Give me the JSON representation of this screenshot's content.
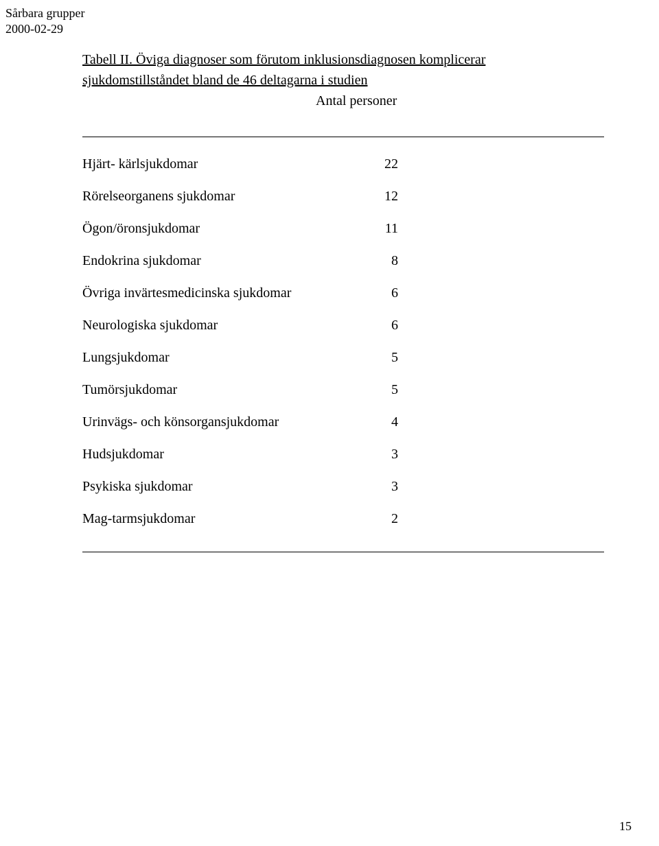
{
  "header": {
    "line1": "Sårbara grupper",
    "line2": "2000-02-29"
  },
  "title": {
    "prefix": "Tabell II.",
    "rest_line1": " Öviga diagnoser som förutom inklusionsdiagnosen komplicerar",
    "line2": "sjukdomstillståndet  bland de 46 deltagarna i studien"
  },
  "subhead": "Antal personer",
  "rows": [
    {
      "label": "Hjärt- kärlsjukdomar",
      "value": "22"
    },
    {
      "label": "Rörelseorganens sjukdomar",
      "value": "12"
    },
    {
      "label": "Ögon/öronsjukdomar",
      "value": "11"
    },
    {
      "label": "Endokrina sjukdomar",
      "value": "8"
    },
    {
      "label": "Övriga invärtesmedicinska sjukdomar",
      "value": "6"
    },
    {
      "label": "Neurologiska sjukdomar",
      "value": "6"
    },
    {
      "label": "Lungsjukdomar",
      "value": "5"
    },
    {
      "label": "Tumörsjukdomar",
      "value": "5"
    },
    {
      "label": "Urinvägs- och könsorgansjukdomar",
      "value": "4"
    },
    {
      "label": "Hudsjukdomar",
      "value": "3"
    },
    {
      "label": "Psykiska sjukdomar",
      "value": "3"
    },
    {
      "label": "Mag-tarmsjukdomar",
      "value": "2"
    }
  ],
  "page_number": "15"
}
